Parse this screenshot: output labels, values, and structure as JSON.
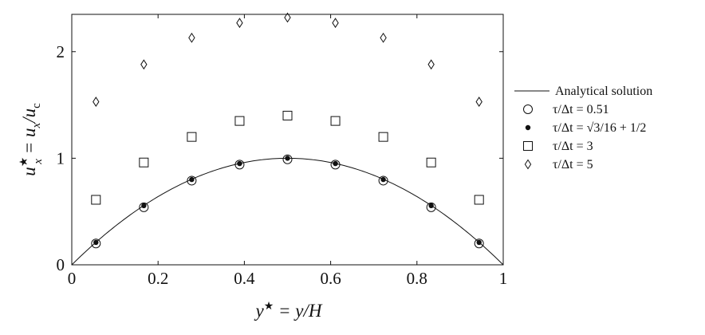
{
  "chart_data": {
    "type": "scatter",
    "xlabel": "y★ = y/H",
    "ylabel": "u★x = ux/uc",
    "xlim": [
      0,
      1
    ],
    "ylim": [
      0,
      2.35
    ],
    "grid": false,
    "legend_position": "right",
    "x_ticks": [
      "0",
      "0.2",
      "0.4",
      "0.6",
      "0.8",
      "1"
    ],
    "y_ticks": [
      "0",
      "1",
      "2"
    ],
    "x_tick_values": [
      0,
      0.2,
      0.4,
      0.6,
      0.8,
      1
    ],
    "y_tick_values": [
      0,
      1,
      2
    ],
    "analytical": {
      "name": "Analytical solution",
      "formula": "4 y (1 - y)"
    },
    "series": [
      {
        "name": "τ/Δt = 0.51",
        "marker": "circle",
        "x": [
          0.056,
          0.167,
          0.278,
          0.389,
          0.5,
          0.611,
          0.722,
          0.833,
          0.944
        ],
        "y": [
          0.2,
          0.54,
          0.79,
          0.94,
          0.99,
          0.94,
          0.79,
          0.54,
          0.2
        ]
      },
      {
        "name": "τ/Δt = √3/16 + 1/2",
        "marker": "dot",
        "x": [
          0.056,
          0.167,
          0.278,
          0.389,
          0.5,
          0.611,
          0.722,
          0.833,
          0.944
        ],
        "y": [
          0.21,
          0.555,
          0.8,
          0.95,
          1.0,
          0.95,
          0.8,
          0.555,
          0.21
        ]
      },
      {
        "name": "τ/Δt = 3",
        "marker": "square",
        "x": [
          0.056,
          0.167,
          0.278,
          0.389,
          0.5,
          0.611,
          0.722,
          0.833,
          0.944
        ],
        "y": [
          0.61,
          0.96,
          1.2,
          1.35,
          1.4,
          1.35,
          1.2,
          0.96,
          0.61
        ]
      },
      {
        "name": "τ/Δt = 5",
        "marker": "diamond",
        "x": [
          0.056,
          0.167,
          0.278,
          0.389,
          0.5,
          0.611,
          0.722,
          0.833,
          0.944
        ],
        "y": [
          1.53,
          1.88,
          2.13,
          2.27,
          2.32,
          2.27,
          2.13,
          1.88,
          1.53
        ]
      }
    ],
    "legend": [
      {
        "label": "Analytical solution",
        "marker": "line"
      },
      {
        "label": "τ/Δt = 0.51",
        "marker": "circle"
      },
      {
        "label": "τ/Δt = √3/16 + 1/2",
        "marker": "dot"
      },
      {
        "label": "τ/Δt = 3",
        "marker": "square"
      },
      {
        "label": "τ/Δt = 5",
        "marker": "diamond"
      }
    ],
    "colors": {
      "ink": "#111111",
      "background": "#ffffff"
    }
  }
}
